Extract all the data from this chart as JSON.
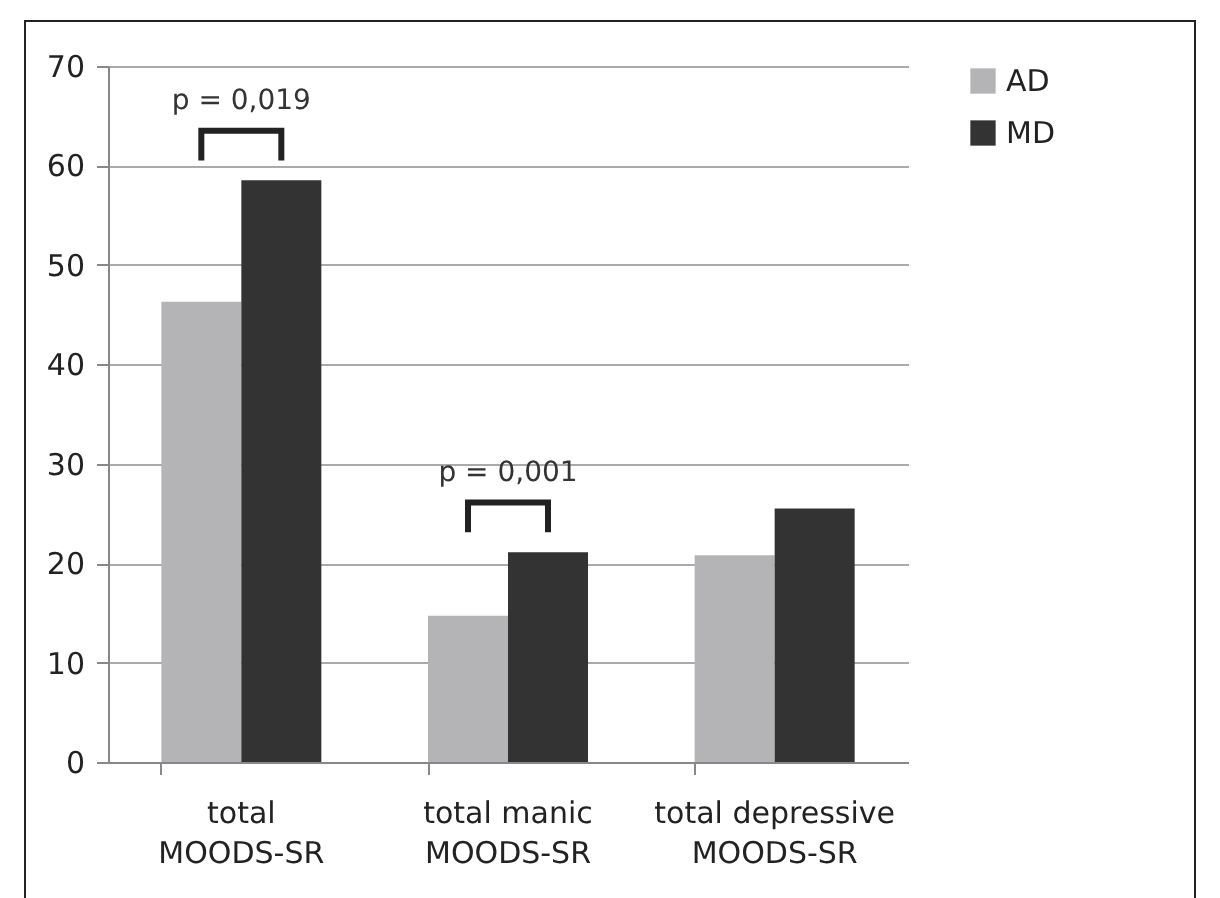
{
  "chart_data": {
    "type": "bar",
    "categories": [
      "total MOODS-SR",
      "total manic MOODS-SR",
      "total depressive MOODS-SR"
    ],
    "series": [
      {
        "name": "AD",
        "color": "#b4b4b6",
        "values": [
          46.3,
          14.7,
          20.8
        ]
      },
      {
        "name": "MD",
        "color": "#333333",
        "values": [
          58.5,
          21.1,
          25.5
        ]
      }
    ],
    "ylim": [
      0,
      70
    ],
    "yticks": [
      0,
      10,
      20,
      30,
      40,
      50,
      60,
      70
    ],
    "grid": "y",
    "legend": "right",
    "annotations": [
      "p = 0,019",
      "p = 0,001"
    ]
  }
}
